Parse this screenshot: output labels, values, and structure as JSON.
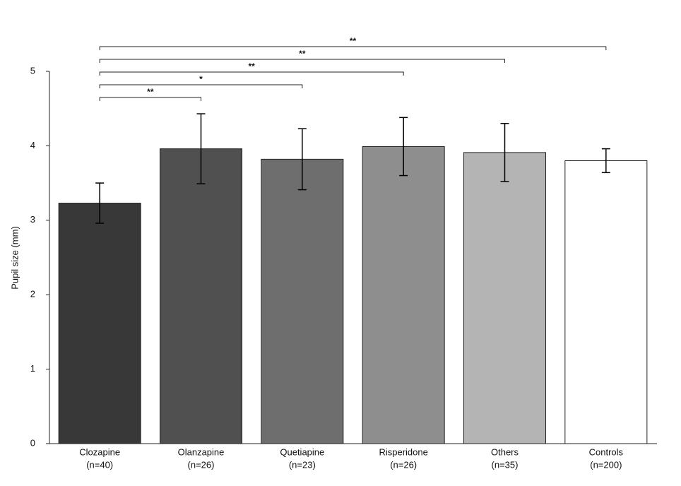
{
  "chart_data": {
    "type": "bar",
    "y_label": "Pupil size (mm)",
    "categories": [
      "Clozapine",
      "Olanzapine",
      "Quetiapine",
      "Risperidone",
      "Others",
      "Controls"
    ],
    "n_labels": [
      "(n=40)",
      "(n=26)",
      "(n=23)",
      "(n=26)",
      "(n=35)",
      "(n=200)"
    ],
    "values": [
      3.23,
      3.96,
      3.82,
      3.99,
      3.91,
      3.8
    ],
    "errors": [
      0.27,
      0.47,
      0.41,
      0.39,
      0.39,
      0.16
    ],
    "colors": [
      "#383838",
      "#505050",
      "#6e6e6e",
      "#8e8e8e",
      "#b4b4b4",
      "#ffffff"
    ],
    "significance_vs_first": [
      null,
      "**",
      "*",
      "**",
      "**",
      "**"
    ],
    "ylim": [
      0,
      5
    ],
    "yticks": [
      0,
      1,
      2,
      3,
      4,
      5
    ],
    "grid": false
  }
}
